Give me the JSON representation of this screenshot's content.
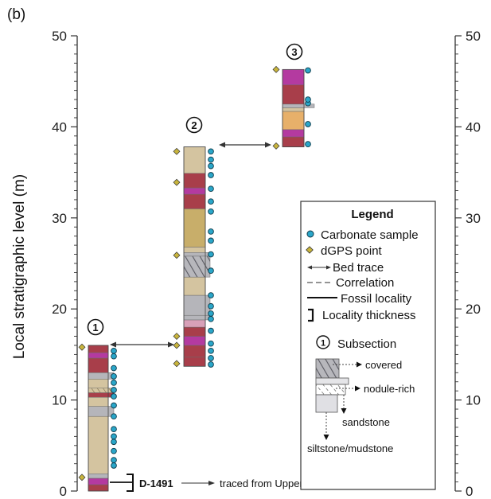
{
  "panel_label": "(b)",
  "y_axis": {
    "label": "Local stratigraphic level (m)",
    "ticks": [
      "0",
      "10",
      "20",
      "30",
      "40",
      "50"
    ],
    "range": [
      0,
      50
    ]
  },
  "subsections": [
    {
      "id": "1",
      "label": "1",
      "base_m": 0,
      "top_m": 16
    },
    {
      "id": "2",
      "label": "2",
      "base_m": 13.7,
      "top_m": 37.8
    },
    {
      "id": "3",
      "label": "3",
      "base_m": 37.8,
      "top_m": 46.3
    }
  ],
  "legend": {
    "title": "Legend",
    "items": [
      {
        "key": "carbonate",
        "label": "Carbonate sample"
      },
      {
        "key": "dgps",
        "label": "dGPS point"
      },
      {
        "key": "bedtrace",
        "label": "Bed trace"
      },
      {
        "key": "correlation",
        "label": "Correlation"
      },
      {
        "key": "fossil",
        "label": "Fossil locality"
      },
      {
        "key": "thickness",
        "label": "Locality thickness"
      },
      {
        "key": "subsection",
        "label": "Subsection",
        "symbol": "1"
      }
    ],
    "key_labels": {
      "covered": "covered",
      "nodule": "nodule-rich",
      "sandstone": "sandstone",
      "siltstone": "siltstone/mudstone"
    }
  },
  "fossil_locality": {
    "label": "D-1491",
    "note": "traced from Upper North Fork",
    "level_m": 1
  },
  "colors": {
    "tan": "#d4c4a0",
    "maroon": "#a83e4a",
    "magenta": "#b43aa0",
    "gray": "#b5b5ba",
    "ochre": "#c8ae6a",
    "orange": "#e7b06a",
    "carbonate": "#2aa6c9",
    "dgps": "#c8b43c"
  }
}
